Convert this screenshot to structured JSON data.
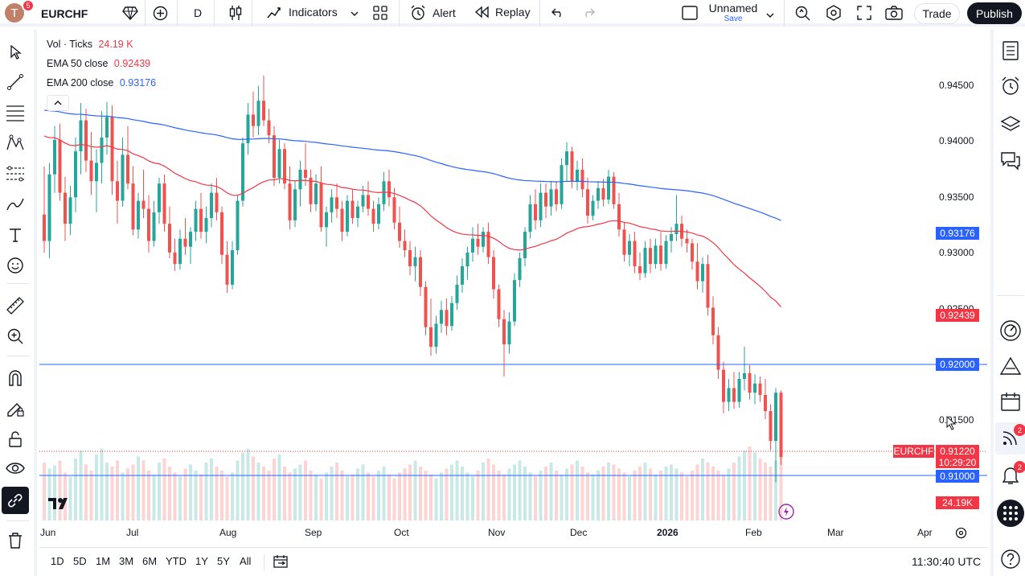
{
  "header": {
    "avatar_letter": "T",
    "avatar_badge": "5",
    "symbol": "EURCHF",
    "interval": "D",
    "indicators_label": "Indicators",
    "alert_label": "Alert",
    "replay_label": "Replay",
    "layout_name": "Unnamed",
    "layout_save": "Save",
    "trade_label": "Trade",
    "publish_label": "Publish"
  },
  "legend": {
    "volume_title": "Vol · Ticks",
    "volume_value": "24.19 K",
    "ema50_title": "EMA 50 close",
    "ema50_value": "0.92439",
    "ema200_title": "EMA 200 close",
    "ema200_value": "0.93176"
  },
  "colors": {
    "up": "#26a69a",
    "down": "#ef5350",
    "ema50": "#f23645",
    "ema200": "#2962ff",
    "hline": "#2962ff"
  },
  "price_axis": {
    "labels": [
      "0.94500",
      "0.94000",
      "0.93500",
      "0.93000",
      "0.92500",
      "0.91500"
    ],
    "ema200_tag": "0.93176",
    "ema50_tag": "0.92439",
    "level_tag_1": "0.92000",
    "symbol_tag": "EURCHF",
    "last_price": "0.91220",
    "countdown": "10:29:20",
    "level_tag_2": "0.91000",
    "volume_tag": "24.19K"
  },
  "time_axis": [
    "Jun",
    "Jul",
    "Aug",
    "Sep",
    "Oct",
    "Nov",
    "Dec",
    "2026",
    "Feb",
    "Mar",
    "Apr"
  ],
  "bottom": {
    "ranges": [
      "1D",
      "5D",
      "1M",
      "3M",
      "6M",
      "YTD",
      "1Y",
      "5Y",
      "All"
    ],
    "clock": "11:30:40 UTC"
  },
  "right_sidebar": {
    "feed_badge": "2",
    "alerts_badge": "2"
  },
  "icons": {
    "left": [
      "cursor-icon",
      "trendline-icon",
      "fib-icon",
      "pattern-icon",
      "forecast-icon",
      "brush-icon",
      "text-icon",
      "emoji-icon",
      "ruler-icon",
      "zoom-icon",
      "magnet-icon",
      "lock-drawing-icon",
      "lock-icon",
      "eye-icon",
      "link-icon",
      "trash-icon"
    ],
    "right": [
      "watchlist-icon",
      "alarm-icon",
      "layers-icon",
      "chat-icon",
      "dashboard-icon",
      "triangle-icon",
      "calendar-icon",
      "broadcast-icon",
      "bell-icon",
      "apps-icon",
      "help-icon"
    ]
  },
  "chart_data": {
    "type": "candlestick",
    "symbol": "EURCHF",
    "interval": "D",
    "ylim": [
      0.9085,
      0.947
    ],
    "horizontal_lines": [
      0.92,
      0.91
    ],
    "last_price": 0.9122,
    "ema50_last": 0.92439,
    "ema200_last": 0.93176,
    "volume_last": "24.19K",
    "ohlc": [
      [
        0.9333,
        0.9375,
        0.93,
        0.931
      ],
      [
        0.931,
        0.9378,
        0.9295,
        0.9368
      ],
      [
        0.9368,
        0.941,
        0.9352,
        0.9398
      ],
      [
        0.9398,
        0.9412,
        0.9345,
        0.9352
      ],
      [
        0.9352,
        0.9366,
        0.931,
        0.9325
      ],
      [
        0.9325,
        0.9358,
        0.9315,
        0.9348
      ],
      [
        0.9348,
        0.94,
        0.9335,
        0.9388
      ],
      [
        0.9388,
        0.943,
        0.9368,
        0.9415
      ],
      [
        0.9415,
        0.9425,
        0.937,
        0.938
      ],
      [
        0.938,
        0.9405,
        0.935,
        0.9362
      ],
      [
        0.9362,
        0.939,
        0.9335,
        0.9378
      ],
      [
        0.9378,
        0.9423,
        0.936,
        0.94
      ],
      [
        0.94,
        0.9431,
        0.9385,
        0.9418
      ],
      [
        0.9418,
        0.9428,
        0.935,
        0.9362
      ],
      [
        0.9362,
        0.938,
        0.9325,
        0.9345
      ],
      [
        0.9345,
        0.94,
        0.934,
        0.9385
      ],
      [
        0.9385,
        0.941,
        0.9355,
        0.936
      ],
      [
        0.936,
        0.9375,
        0.9315,
        0.932
      ],
      [
        0.932,
        0.9352,
        0.9312,
        0.9345
      ],
      [
        0.9345,
        0.9372,
        0.933,
        0.9338
      ],
      [
        0.9338,
        0.935,
        0.93,
        0.931
      ],
      [
        0.931,
        0.9345,
        0.9305,
        0.9335
      ],
      [
        0.9335,
        0.9365,
        0.9325,
        0.936
      ],
      [
        0.936,
        0.9368,
        0.9318,
        0.9325
      ],
      [
        0.9325,
        0.934,
        0.9295,
        0.93
      ],
      [
        0.93,
        0.9312,
        0.9284,
        0.929
      ],
      [
        0.929,
        0.932,
        0.9285,
        0.9312
      ],
      [
        0.9312,
        0.933,
        0.9298,
        0.9305
      ],
      [
        0.9305,
        0.9322,
        0.929,
        0.9318
      ],
      [
        0.9318,
        0.9345,
        0.931,
        0.9338
      ],
      [
        0.9338,
        0.9352,
        0.9312,
        0.9318
      ],
      [
        0.9318,
        0.934,
        0.9308,
        0.933
      ],
      [
        0.933,
        0.936,
        0.9322,
        0.9352
      ],
      [
        0.9352,
        0.9365,
        0.9328,
        0.9335
      ],
      [
        0.9335,
        0.934,
        0.929,
        0.9298
      ],
      [
        0.9298,
        0.931,
        0.9265,
        0.9272
      ],
      [
        0.9272,
        0.931,
        0.9268,
        0.9302
      ],
      [
        0.9302,
        0.935,
        0.9298,
        0.9345
      ],
      [
        0.9345,
        0.94,
        0.934,
        0.9395
      ],
      [
        0.9395,
        0.943,
        0.9385,
        0.942
      ],
      [
        0.942,
        0.944,
        0.94,
        0.941
      ],
      [
        0.941,
        0.9445,
        0.9402,
        0.9432
      ],
      [
        0.9432,
        0.9454,
        0.941,
        0.9415
      ],
      [
        0.9415,
        0.9425,
        0.9395,
        0.9402
      ],
      [
        0.9402,
        0.941,
        0.9358,
        0.9365
      ],
      [
        0.9365,
        0.9398,
        0.936,
        0.939
      ],
      [
        0.939,
        0.9395,
        0.9355,
        0.936
      ],
      [
        0.936,
        0.9375,
        0.932,
        0.9328
      ],
      [
        0.9328,
        0.9362,
        0.9322,
        0.9355
      ],
      [
        0.9355,
        0.938,
        0.934,
        0.9372
      ],
      [
        0.9372,
        0.9395,
        0.9358,
        0.9365
      ],
      [
        0.9365,
        0.9372,
        0.9335,
        0.9342
      ],
      [
        0.9342,
        0.9368,
        0.9336,
        0.936
      ],
      [
        0.936,
        0.9375,
        0.9318,
        0.9322
      ],
      [
        0.9322,
        0.934,
        0.9305,
        0.9335
      ],
      [
        0.9335,
        0.9355,
        0.9326,
        0.9348
      ],
      [
        0.9348,
        0.936,
        0.933,
        0.9338
      ],
      [
        0.9338,
        0.9345,
        0.931,
        0.9318
      ],
      [
        0.9318,
        0.935,
        0.9314,
        0.9345
      ],
      [
        0.9345,
        0.9355,
        0.9325,
        0.933
      ],
      [
        0.933,
        0.9345,
        0.9322,
        0.934
      ],
      [
        0.934,
        0.9358,
        0.9335,
        0.935
      ],
      [
        0.935,
        0.9362,
        0.9332,
        0.9338
      ],
      [
        0.9338,
        0.9345,
        0.9318,
        0.9325
      ],
      [
        0.9325,
        0.9348,
        0.932,
        0.9342
      ],
      [
        0.9342,
        0.937,
        0.9336,
        0.9362
      ],
      [
        0.9362,
        0.9372,
        0.934,
        0.9348
      ],
      [
        0.9348,
        0.9356,
        0.932,
        0.9326
      ],
      [
        0.9326,
        0.934,
        0.9304,
        0.931
      ],
      [
        0.931,
        0.932,
        0.9296,
        0.9302
      ],
      [
        0.9302,
        0.931,
        0.928,
        0.9288
      ],
      [
        0.9288,
        0.9305,
        0.9275,
        0.9296
      ],
      [
        0.9296,
        0.9302,
        0.9262,
        0.927
      ],
      [
        0.927,
        0.9275,
        0.9228,
        0.9235
      ],
      [
        0.9235,
        0.926,
        0.921,
        0.9218
      ],
      [
        0.9218,
        0.9245,
        0.9212,
        0.9238
      ],
      [
        0.9238,
        0.9258,
        0.923,
        0.925
      ],
      [
        0.925,
        0.926,
        0.9228,
        0.9236
      ],
      [
        0.9236,
        0.9262,
        0.9232,
        0.9256
      ],
      [
        0.9256,
        0.928,
        0.925,
        0.9272
      ],
      [
        0.9272,
        0.9295,
        0.9265,
        0.9288
      ],
      [
        0.9288,
        0.9305,
        0.9276,
        0.93
      ],
      [
        0.93,
        0.9322,
        0.9292,
        0.9312
      ],
      [
        0.9312,
        0.9325,
        0.9298,
        0.9305
      ],
      [
        0.9305,
        0.9322,
        0.93,
        0.9318
      ],
      [
        0.9318,
        0.9326,
        0.929,
        0.9296
      ],
      [
        0.9296,
        0.9302,
        0.926,
        0.9268
      ],
      [
        0.9268,
        0.9272,
        0.9235,
        0.9242
      ],
      [
        0.9242,
        0.925,
        0.9192,
        0.922
      ],
      [
        0.922,
        0.9248,
        0.9212,
        0.924
      ],
      [
        0.924,
        0.9282,
        0.9236,
        0.9276
      ],
      [
        0.9276,
        0.93,
        0.927,
        0.9295
      ],
      [
        0.9295,
        0.9322,
        0.9288,
        0.9318
      ],
      [
        0.9318,
        0.935,
        0.9312,
        0.9342
      ],
      [
        0.9342,
        0.9355,
        0.932,
        0.9328
      ],
      [
        0.9328,
        0.936,
        0.9322,
        0.9352
      ],
      [
        0.9352,
        0.936,
        0.933,
        0.934
      ],
      [
        0.934,
        0.9362,
        0.9332,
        0.9355
      ],
      [
        0.9355,
        0.9362,
        0.9336,
        0.9342
      ],
      [
        0.9342,
        0.9382,
        0.9338,
        0.9376
      ],
      [
        0.9376,
        0.9396,
        0.9362,
        0.9388
      ],
      [
        0.9388,
        0.9392,
        0.9356,
        0.9362
      ],
      [
        0.9362,
        0.938,
        0.9354,
        0.9372
      ],
      [
        0.9372,
        0.9382,
        0.9348,
        0.9355
      ],
      [
        0.9355,
        0.9365,
        0.9325,
        0.9332
      ],
      [
        0.9332,
        0.935,
        0.9328,
        0.9345
      ],
      [
        0.9345,
        0.9362,
        0.9338,
        0.9356
      ],
      [
        0.9356,
        0.9364,
        0.934,
        0.9346
      ],
      [
        0.9346,
        0.9372,
        0.9342,
        0.9366
      ],
      [
        0.9366,
        0.937,
        0.9338,
        0.9342
      ],
      [
        0.9342,
        0.9352,
        0.9314,
        0.932
      ],
      [
        0.932,
        0.9326,
        0.9292,
        0.9298
      ],
      [
        0.9298,
        0.9316,
        0.9288,
        0.931
      ],
      [
        0.931,
        0.9318,
        0.9282,
        0.9288
      ],
      [
        0.9288,
        0.93,
        0.9276,
        0.9282
      ],
      [
        0.9282,
        0.931,
        0.9278,
        0.9304
      ],
      [
        0.9304,
        0.9312,
        0.9282,
        0.929
      ],
      [
        0.929,
        0.9312,
        0.9286,
        0.9306
      ],
      [
        0.9306,
        0.9318,
        0.9284,
        0.929
      ],
      [
        0.929,
        0.9315,
        0.9286,
        0.931
      ],
      [
        0.931,
        0.9322,
        0.93,
        0.9316
      ],
      [
        0.9316,
        0.935,
        0.931,
        0.9325
      ],
      [
        0.9325,
        0.9332,
        0.9305,
        0.9312
      ],
      [
        0.9312,
        0.932,
        0.93,
        0.9308
      ],
      [
        0.9308,
        0.9312,
        0.9285,
        0.9292
      ],
      [
        0.9292,
        0.9308,
        0.9268,
        0.9275
      ],
      [
        0.9275,
        0.9296,
        0.9265,
        0.929
      ],
      [
        0.929,
        0.9298,
        0.9245,
        0.9252
      ],
      [
        0.9252,
        0.9262,
        0.922,
        0.9228
      ],
      [
        0.9228,
        0.9235,
        0.919,
        0.9198
      ],
      [
        0.9198,
        0.9205,
        0.916,
        0.917
      ],
      [
        0.917,
        0.919,
        0.9162,
        0.9182
      ],
      [
        0.9182,
        0.9196,
        0.9164,
        0.917
      ],
      [
        0.917,
        0.9196,
        0.9165,
        0.919
      ],
      [
        0.919,
        0.9218,
        0.918,
        0.9195
      ],
      [
        0.9195,
        0.9202,
        0.9172,
        0.9178
      ],
      [
        0.9178,
        0.9194,
        0.9168,
        0.9186
      ],
      [
        0.9186,
        0.9192,
        0.917,
        0.9176
      ],
      [
        0.9176,
        0.919,
        0.9155,
        0.9162
      ],
      [
        0.9162,
        0.9168,
        0.9128,
        0.9136
      ],
      [
        0.9136,
        0.9182,
        0.91,
        0.9178
      ],
      [
        0.9178,
        0.918,
        0.9115,
        0.9122
      ]
    ],
    "volume": [
      58,
      52,
      55,
      60,
      48,
      44,
      62,
      70,
      56,
      50,
      66,
      72,
      58,
      54,
      60,
      48,
      52,
      56,
      64,
      60,
      50,
      46,
      58,
      62,
      54,
      48,
      44,
      52,
      56,
      50,
      46,
      58,
      62,
      54,
      50,
      44,
      48,
      60,
      68,
      72,
      64,
      58,
      54,
      50,
      62,
      66,
      54,
      48,
      52,
      56,
      60,
      50,
      46,
      42,
      48,
      54,
      58,
      50,
      44,
      46,
      52,
      56,
      48,
      44,
      50,
      54,
      46,
      42,
      48,
      52,
      56,
      60,
      54,
      50,
      46,
      42,
      48,
      52,
      56,
      60,
      54,
      48,
      44,
      50,
      58,
      62,
      56,
      50,
      46,
      52,
      56,
      60,
      54,
      48,
      44,
      50,
      54,
      58,
      50,
      46,
      52,
      56,
      60,
      54,
      48,
      46,
      50,
      54,
      58,
      56,
      52,
      48,
      44,
      50,
      54,
      58,
      52,
      46,
      50,
      54,
      56,
      52,
      48,
      44,
      50,
      56,
      62,
      58,
      54,
      50,
      46,
      52,
      58,
      64,
      70,
      74,
      68,
      62,
      58,
      54,
      60,
      66,
      54,
      48,
      52,
      44
    ]
  }
}
